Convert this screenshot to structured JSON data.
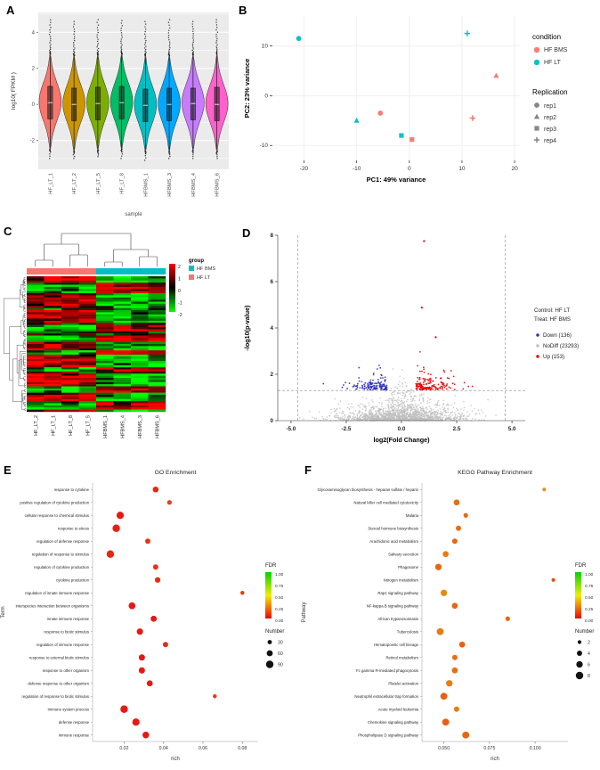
{
  "figure": {
    "panel_letters": {
      "A": "A",
      "B": "B",
      "C": "C",
      "D": "D",
      "E": "E",
      "F": "F"
    }
  },
  "chart_data": [
    {
      "panel": "A",
      "type": "violin",
      "title": "",
      "xlabel": "sample",
      "ylabel": "log10( FPKM )",
      "panel_bg": "#EBEBEB",
      "categories": [
        "HF_LT_1",
        "HF_LT_2",
        "HF_LT_5",
        "HF_LT_8",
        "HFBMS_1",
        "HFBMS_3",
        "HFBMS_4",
        "HFBMS_6"
      ],
      "colors": [
        "#F8766D",
        "#CD9600",
        "#7CAE00",
        "#00BE67",
        "#00BFC4",
        "#00A9FF",
        "#C77CFF",
        "#FF61CC"
      ],
      "ylim": [
        -3.6,
        5.1
      ],
      "yticks": [
        -2,
        0,
        2,
        4
      ],
      "stats": [
        {
          "median": 0.1,
          "q1": -0.8,
          "q3": 1.0,
          "lo": -2.4,
          "hi": 2.7,
          "out_top": 4.7,
          "out_bot": -3.0
        },
        {
          "median": 0.0,
          "q1": -0.9,
          "q3": 0.9,
          "lo": -2.5,
          "hi": 2.6,
          "out_top": 4.6,
          "out_bot": -3.0
        },
        {
          "median": 0.05,
          "q1": -0.85,
          "q3": 0.95,
          "lo": -2.45,
          "hi": 2.65,
          "out_top": 4.7,
          "out_bot": -2.9
        },
        {
          "median": 0.1,
          "q1": -0.8,
          "q3": 1.0,
          "lo": -2.4,
          "hi": 2.7,
          "out_top": 4.65,
          "out_bot": -3.0
        },
        {
          "median": -0.05,
          "q1": -0.95,
          "q3": 0.85,
          "lo": -2.5,
          "hi": 2.6,
          "out_top": 4.6,
          "out_bot": -3.1
        },
        {
          "median": 0.0,
          "q1": -0.9,
          "q3": 0.9,
          "lo": -2.5,
          "hi": 2.6,
          "out_top": 4.7,
          "out_bot": -3.0
        },
        {
          "median": 0.05,
          "q1": -0.85,
          "q3": 0.9,
          "lo": -2.45,
          "hi": 2.65,
          "out_top": 4.6,
          "out_bot": -3.0
        },
        {
          "median": 0.0,
          "q1": -0.9,
          "q3": 0.95,
          "lo": -2.5,
          "hi": 2.7,
          "out_top": 4.7,
          "out_bot": -3.0
        }
      ]
    },
    {
      "panel": "B",
      "type": "pca",
      "xlabel": "PC1: 49% variance",
      "ylabel": "PC2: 23% variance",
      "xlim": [
        -26,
        21
      ],
      "ylim": [
        -13,
        16
      ],
      "xticks": [
        -20,
        -10,
        0,
        10,
        20
      ],
      "yticks": [
        -10,
        0,
        10
      ],
      "condition_colors": {
        "HF BMS": "#F8766D",
        "HF LT": "#00BFC4"
      },
      "legend_condition": {
        "title": "condition",
        "items": [
          "HF BMS",
          "HF LT"
        ]
      },
      "legend_replication": {
        "title": "Replication",
        "items": [
          {
            "label": "rep1",
            "shape": "circle"
          },
          {
            "label": "rep2",
            "shape": "triangle"
          },
          {
            "label": "rep3",
            "shape": "square"
          },
          {
            "label": "rep4",
            "shape": "plus"
          }
        ]
      },
      "points": [
        {
          "x": -21,
          "y": 11.5,
          "condition": "HF LT",
          "rep": "rep1",
          "shape": "circle"
        },
        {
          "x": 11,
          "y": 12.5,
          "condition": "HF LT",
          "rep": "rep4",
          "shape": "plus"
        },
        {
          "x": 16.5,
          "y": 4,
          "condition": "HF BMS",
          "rep": "rep2",
          "shape": "triangle"
        },
        {
          "x": -10,
          "y": -5,
          "condition": "HF LT",
          "rep": "rep2",
          "shape": "triangle"
        },
        {
          "x": -5.5,
          "y": -3.5,
          "condition": "HF BMS",
          "rep": "rep1",
          "shape": "circle"
        },
        {
          "x": 12,
          "y": -4.5,
          "condition": "HF BMS",
          "rep": "rep4",
          "shape": "plus"
        },
        {
          "x": -1.5,
          "y": -8,
          "condition": "HF LT",
          "rep": "rep3",
          "shape": "square"
        },
        {
          "x": 0.5,
          "y": -8.8,
          "condition": "HF BMS",
          "rep": "rep3",
          "shape": "square"
        }
      ]
    },
    {
      "panel": "C",
      "type": "heatmap",
      "columns": [
        "HF_LT_2",
        "HF_LT_1",
        "HF_LT_8",
        "HF_LT_5",
        "HFBMS_1",
        "HFBMS_4",
        "HFBMS_3",
        "HFBMS_6"
      ],
      "col_group": [
        "HF LT",
        "HF LT",
        "HF LT",
        "HF LT",
        "HF BMS",
        "HF BMS",
        "HF BMS",
        "HF BMS"
      ],
      "group_colors": {
        "HF BMS": "#00BFC4",
        "HF LT": "#F8766D"
      },
      "legend_group": {
        "title": "group",
        "items": [
          "HF BMS",
          "HF LT"
        ]
      },
      "scale": {
        "ticks": [
          2,
          1,
          0,
          -1,
          -2
        ],
        "max_color": "#FF0000",
        "mid_color": "#000000",
        "min_color": "#00FF00"
      },
      "n_rows": 64,
      "seed": 11
    },
    {
      "panel": "D",
      "type": "volcano",
      "xlabel": "log2(Fold Change)",
      "ylabel": "-log10(p-value)",
      "xlim": [
        -5.6,
        5.6
      ],
      "ylim": [
        0,
        8
      ],
      "xticks": [
        {
          "v": -5,
          "l": "-5.0"
        },
        {
          "v": -2.5,
          "l": "-2.5"
        },
        {
          "v": 0,
          "l": "0.0"
        },
        {
          "v": 2.5,
          "l": "2.5"
        },
        {
          "v": 5,
          "l": "5.0"
        }
      ],
      "yticks": [
        0,
        2,
        4,
        6,
        8
      ],
      "annotation_lines": [
        "Control: HF LT",
        "Treat: HF BMS"
      ],
      "groups": [
        {
          "label": "Down (136)",
          "color": "#2E2EB8",
          "count": 136
        },
        {
          "label": "NoDiff (23293)",
          "color": "#BEBEBE",
          "count": 23293
        },
        {
          "label": "Up (153)",
          "color": "#E60000",
          "count": 153
        }
      ],
      "hline_y": 1.3,
      "vlines_x": [
        -4.7,
        4.7
      ],
      "highlight_points": [
        {
          "x": 1.02,
          "y": 7.75,
          "group": "Up"
        },
        {
          "x": 0.92,
          "y": 4.88,
          "group": "Up"
        },
        {
          "x": 1.55,
          "y": 3.6,
          "group": "Up"
        }
      ],
      "seed": 23
    },
    {
      "panel": "E",
      "type": "dotplot",
      "title": "GO Enrichment",
      "xlabel": "rich",
      "ylabel": "Term",
      "xlim": [
        0.004,
        0.088
      ],
      "xticks": [
        {
          "v": 0.02,
          "l": "0.02"
        },
        {
          "v": 0.04,
          "l": "0.04"
        },
        {
          "v": 0.06,
          "l": "0.06"
        },
        {
          "v": 0.08,
          "l": "0.08"
        }
      ],
      "fdr_legend": {
        "title": "FDR",
        "labels": [
          "1.00",
          "0.75",
          "0.50",
          "0.25",
          "0.00"
        ]
      },
      "number_legend": {
        "title": "Number",
        "values": [
          30,
          60,
          90
        ]
      },
      "rows": [
        {
          "label": "response to cytokine",
          "rich": 0.036,
          "number": 55,
          "fdr": 0.05
        },
        {
          "label": "positive regulation of cytokine production",
          "rich": 0.043,
          "number": 35,
          "fdr": 0.12
        },
        {
          "label": "cellular response to chemical stimulus",
          "rich": 0.018,
          "number": 85,
          "fdr": 0.02
        },
        {
          "label": "response to stress",
          "rich": 0.016,
          "number": 90,
          "fdr": 0.03
        },
        {
          "label": "regulation of defense response",
          "rich": 0.032,
          "number": 45,
          "fdr": 0.08
        },
        {
          "label": "regulation of response to stimulus",
          "rich": 0.013,
          "number": 90,
          "fdr": 0.05
        },
        {
          "label": "regulation of cytokine production",
          "rich": 0.036,
          "number": 45,
          "fdr": 0.08
        },
        {
          "label": "cytokine production",
          "rich": 0.037,
          "number": 50,
          "fdr": 0.06
        },
        {
          "label": "regulation of innate immune response",
          "rich": 0.08,
          "number": 25,
          "fdr": 0.1
        },
        {
          "label": "interspecies interaction between organisms",
          "rich": 0.024,
          "number": 75,
          "fdr": 0.02
        },
        {
          "label": "innate immune response",
          "rich": 0.035,
          "number": 60,
          "fdr": 0.02
        },
        {
          "label": "response to biotic stimulus",
          "rich": 0.028,
          "number": 65,
          "fdr": 0.02
        },
        {
          "label": "regulation of immune response",
          "rich": 0.041,
          "number": 45,
          "fdr": 0.06
        },
        {
          "label": "response to external biotic stimulus",
          "rich": 0.029,
          "number": 62,
          "fdr": 0.02
        },
        {
          "label": "response to other organism",
          "rich": 0.029,
          "number": 62,
          "fdr": 0.02
        },
        {
          "label": "defense response to other organism",
          "rich": 0.033,
          "number": 58,
          "fdr": 0.02
        },
        {
          "label": "regulation of response to biotic stimulus",
          "rich": 0.066,
          "number": 25,
          "fdr": 0.1
        },
        {
          "label": "immune system process",
          "rich": 0.02,
          "number": 90,
          "fdr": 0.02
        },
        {
          "label": "defense response",
          "rich": 0.026,
          "number": 85,
          "fdr": 0.02
        },
        {
          "label": "immune response",
          "rich": 0.031,
          "number": 70,
          "fdr": 0.02
        }
      ]
    },
    {
      "panel": "F",
      "type": "dotplot",
      "title": "KEGG Pathway Enrichment",
      "xlabel": "rich",
      "ylabel": "Pathway",
      "xlim": [
        0.038,
        0.118
      ],
      "xticks": [
        {
          "v": 0.05,
          "l": "0.050"
        },
        {
          "v": 0.075,
          "l": "0.075"
        },
        {
          "v": 0.1,
          "l": "0.100"
        }
      ],
      "fdr_legend": {
        "title": "FDR",
        "labels": [
          "1.00",
          "0.75",
          "0.50",
          "0.25",
          "0.00"
        ]
      },
      "number_legend": {
        "title": "Number",
        "values": [
          2,
          4,
          6,
          8
        ]
      },
      "rows": [
        {
          "label": "Glycosaminoglycan biosynthesis - heparan sulfate / heparin",
          "rich": 0.105,
          "number": 2,
          "fdr": 0.3
        },
        {
          "label": "Natural killer cell mediated cytotoxicity",
          "rich": 0.057,
          "number": 5,
          "fdr": 0.22
        },
        {
          "label": "Malaria",
          "rich": 0.062,
          "number": 3,
          "fdr": 0.2
        },
        {
          "label": "Steroid hormone biosynthesis",
          "rich": 0.058,
          "number": 4,
          "fdr": 0.22
        },
        {
          "label": "Arachidonic acid metabolism",
          "rich": 0.056,
          "number": 4,
          "fdr": 0.2
        },
        {
          "label": "Salivary secretion",
          "rich": 0.051,
          "number": 5,
          "fdr": 0.25
        },
        {
          "label": "Phagosome",
          "rich": 0.047,
          "number": 6,
          "fdr": 0.2
        },
        {
          "label": "Nitrogen metabolism",
          "rich": 0.11,
          "number": 2,
          "fdr": 0.15
        },
        {
          "label": "Rap1 signaling pathway",
          "rich": 0.05,
          "number": 6,
          "fdr": 0.28
        },
        {
          "label": "NF-kappa B signaling pathway",
          "rich": 0.056,
          "number": 5,
          "fdr": 0.2
        },
        {
          "label": "African trypanosomiasis",
          "rich": 0.085,
          "number": 3,
          "fdr": 0.2
        },
        {
          "label": "Tuberculosis",
          "rich": 0.048,
          "number": 7,
          "fdr": 0.25
        },
        {
          "label": "Hematopoietic cell lineage",
          "rich": 0.06,
          "number": 5,
          "fdr": 0.18
        },
        {
          "label": "Retinol metabolism",
          "rich": 0.056,
          "number": 4,
          "fdr": 0.22
        },
        {
          "label": "Fc gamma R-mediated phagocytosis",
          "rich": 0.056,
          "number": 5,
          "fdr": 0.22
        },
        {
          "label": "Platelet activation",
          "rich": 0.053,
          "number": 6,
          "fdr": 0.25
        },
        {
          "label": "Neutrophil extracellular trap formation",
          "rich": 0.05,
          "number": 7,
          "fdr": 0.18
        },
        {
          "label": "Acute myeloid leukemia",
          "rich": 0.057,
          "number": 4,
          "fdr": 0.25
        },
        {
          "label": "Chemokine signaling pathway",
          "rich": 0.051,
          "number": 7,
          "fdr": 0.18
        },
        {
          "label": "Phospholipase D signaling pathway",
          "rich": 0.062,
          "number": 7,
          "fdr": 0.2
        }
      ]
    }
  ]
}
